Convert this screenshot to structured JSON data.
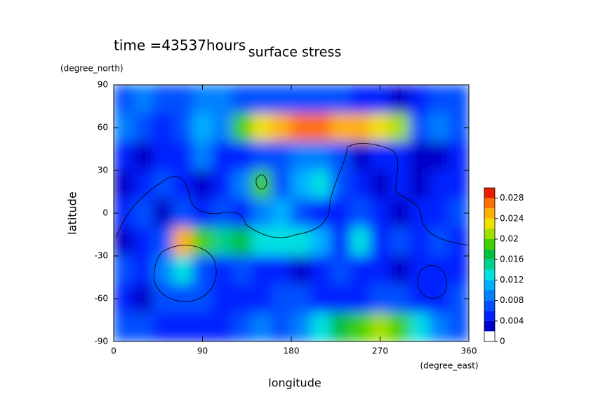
{
  "chart_data": {
    "type": "contour",
    "title": "surface stress",
    "annotation": "time =43537hours",
    "x_label": "longitude",
    "x_unit": "(degree_east)",
    "y_label": "latitude",
    "y_unit": "(degree_north)",
    "xlim": [
      0,
      360
    ],
    "xticks": [
      0,
      90,
      180,
      270,
      360
    ],
    "ylim": [
      -90,
      90
    ],
    "yticks": [
      -90,
      -60,
      -30,
      0,
      30,
      60,
      90
    ],
    "x": [
      10,
      30,
      50,
      70,
      90,
      110,
      130,
      150,
      170,
      190,
      210,
      230,
      250,
      270,
      290,
      310,
      330,
      350
    ],
    "y": [
      80,
      60,
      40,
      20,
      0,
      -20,
      -40,
      -60,
      -80
    ],
    "z": [
      [
        0.006,
        0.008,
        0.006,
        0.006,
        0.008,
        0.008,
        0.006,
        0.006,
        0.006,
        0.006,
        0.006,
        0.006,
        0.004,
        0.004,
        0.002,
        0.004,
        0.006,
        0.006
      ],
      [
        0.008,
        0.006,
        0.004,
        0.006,
        0.01,
        0.008,
        0.018,
        0.022,
        0.024,
        0.026,
        0.026,
        0.024,
        0.024,
        0.022,
        0.02,
        0.006,
        0.008,
        0.006
      ],
      [
        0.004,
        0.002,
        0.004,
        0.004,
        0.008,
        0.004,
        0.004,
        0.006,
        0.006,
        0.008,
        0.008,
        0.006,
        0.002,
        0.004,
        0.004,
        0.002,
        0.002,
        0.004
      ],
      [
        0.002,
        0.004,
        0.006,
        0.004,
        0.002,
        0.004,
        0.008,
        0.018,
        0.006,
        0.01,
        0.012,
        0.006,
        0.004,
        0.002,
        0.004,
        0.002,
        0.004,
        0.004
      ],
      [
        0.004,
        0.006,
        0.002,
        0.006,
        0.004,
        0.006,
        0.004,
        0.008,
        0.01,
        0.006,
        0.004,
        0.004,
        0.006,
        0.004,
        0.002,
        0.004,
        0.004,
        0.006
      ],
      [
        0.002,
        0.004,
        0.006,
        0.024,
        0.018,
        0.014,
        0.016,
        0.012,
        0.012,
        0.012,
        0.01,
        0.004,
        0.012,
        0.004,
        0.006,
        0.004,
        0.006,
        0.004
      ],
      [
        0.006,
        0.004,
        0.008,
        0.012,
        0.006,
        0.004,
        0.006,
        0.004,
        0.004,
        0.002,
        0.004,
        0.006,
        0.004,
        0.004,
        0.002,
        0.004,
        0.004,
        0.004
      ],
      [
        0.004,
        0.002,
        0.006,
        0.006,
        0.006,
        0.004,
        0.004,
        0.004,
        0.006,
        0.006,
        0.004,
        0.004,
        0.004,
        0.006,
        0.006,
        0.004,
        0.004,
        0.006
      ],
      [
        0.006,
        0.006,
        0.004,
        0.004,
        0.004,
        0.004,
        0.006,
        0.008,
        0.006,
        0.008,
        0.012,
        0.016,
        0.018,
        0.02,
        0.018,
        0.012,
        0.008,
        0.006
      ]
    ],
    "levels": [
      0,
      0.002,
      0.004,
      0.006,
      0.008,
      0.01,
      0.012,
      0.014,
      0.016,
      0.018,
      0.02,
      0.022,
      0.024,
      0.026,
      0.028,
      0.03
    ],
    "colors": [
      "#ffffff",
      "#0000c8",
      "#0020ff",
      "#0050ff",
      "#0080ff",
      "#00b0ff",
      "#00e0e0",
      "#00d090",
      "#00c040",
      "#40d000",
      "#a0e000",
      "#f0e000",
      "#ffb000",
      "#ff7000",
      "#e82000"
    ],
    "colorbar_ticks": [
      0,
      0.004,
      0.008,
      0.012,
      0.016,
      0.02,
      0.024,
      0.028
    ]
  }
}
